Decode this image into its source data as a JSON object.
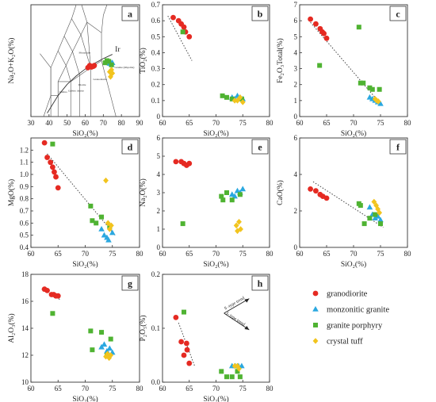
{
  "colors": {
    "granodiorite": "#e52a22",
    "monzonitic_granite": "#2aa8e0",
    "granite_porphyry": "#4fb332",
    "crystal_tuff": "#f2c41e",
    "axis": "#333333",
    "trend": "#444444"
  },
  "legend": {
    "items": [
      {
        "key": "granodiorite",
        "label": "granodiorite",
        "marker": "circle",
        "color": "#e52a22"
      },
      {
        "key": "monzonitic_granite",
        "label": "monzonitic granite",
        "marker": "triangle",
        "color": "#2aa8e0"
      },
      {
        "key": "granite_porphyry",
        "label": "granite porphyry",
        "marker": "square",
        "color": "#4fb332"
      },
      {
        "key": "crystal_tuff",
        "label": "crystal tuff",
        "marker": "diamond",
        "color": "#f2c41e"
      }
    ]
  },
  "chart_data": [
    {
      "panel": "a",
      "type": "scatter",
      "xlabel": "SiO₂(%)",
      "ylabel": "Na₂O+K₂O(%)",
      "xlim": [
        30,
        90
      ],
      "ylim": [
        0,
        16
      ],
      "xticks": [
        30,
        40,
        50,
        60,
        70,
        80,
        90
      ],
      "annotations": [
        "Ir",
        "Granite (Rhyolite)",
        "Granodiorite",
        "Diorite",
        "Gabbro diorite",
        "Gabbro",
        "Monzonite"
      ],
      "series": [
        {
          "key": "granodiorite",
          "points": [
            [
              61.5,
              7.0
            ],
            [
              62.5,
              7.3
            ],
            [
              63.5,
              7.1
            ],
            [
              64.5,
              7.2
            ],
            [
              65.0,
              7.3
            ]
          ]
        },
        {
          "key": "monzonitic_granite",
          "points": [
            [
              73.5,
              7.6
            ],
            [
              74.0,
              7.8
            ],
            [
              74.5,
              7.5
            ],
            [
              75.0,
              7.7
            ]
          ]
        },
        {
          "key": "granite_porphyry",
          "points": [
            [
              71.0,
              7.7
            ],
            [
              72.0,
              8.0
            ],
            [
              73.0,
              7.9
            ],
            [
              74.5,
              7.4
            ]
          ]
        },
        {
          "key": "crystal_tuff",
          "points": [
            [
              73.5,
              6.4
            ],
            [
              74.0,
              5.7
            ],
            [
              74.5,
              6.7
            ],
            [
              75.0,
              6.2
            ]
          ]
        }
      ]
    },
    {
      "panel": "b",
      "type": "scatter",
      "xlabel": "SiO₂(%)",
      "ylabel": "TiO₂(%)",
      "xlim": [
        60,
        80
      ],
      "ylim": [
        0,
        0.7
      ],
      "xticks": [
        60,
        65,
        70,
        75,
        80
      ],
      "yticks": [
        0.0,
        0.1,
        0.2,
        0.3,
        0.4,
        0.5,
        0.6,
        0.7
      ],
      "trend": [
        [
          61.0,
          0.63
        ],
        [
          65.5,
          0.35
        ]
      ],
      "series": [
        {
          "key": "granodiorite",
          "points": [
            [
              62.0,
              0.62
            ],
            [
              63.0,
              0.6
            ],
            [
              63.5,
              0.58
            ],
            [
              64.0,
              0.56
            ],
            [
              64.3,
              0.53
            ],
            [
              65.0,
              0.5
            ]
          ]
        },
        {
          "key": "monzonitic_granite",
          "points": [
            [
              73.0,
              0.12
            ],
            [
              73.5,
              0.11
            ],
            [
              74.0,
              0.13
            ],
            [
              74.5,
              0.12
            ],
            [
              75.0,
              0.11
            ]
          ]
        },
        {
          "key": "granite_porphyry",
          "points": [
            [
              63.8,
              0.53
            ],
            [
              71.2,
              0.13
            ],
            [
              72.0,
              0.12
            ],
            [
              73.0,
              0.11
            ],
            [
              74.8,
              0.11
            ]
          ]
        },
        {
          "key": "crystal_tuff",
          "points": [
            [
              73.5,
              0.1
            ],
            [
              74.0,
              0.1
            ],
            [
              74.5,
              0.12
            ],
            [
              75.0,
              0.09
            ]
          ]
        }
      ]
    },
    {
      "panel": "c",
      "type": "scatter",
      "xlabel": "SiO₂(%)",
      "ylabel": "Fe₂O₃Total(%)",
      "xlim": [
        60,
        80
      ],
      "ylim": [
        0,
        7
      ],
      "xticks": [
        60,
        65,
        70,
        75,
        80
      ],
      "yticks": [
        0,
        1,
        2,
        3,
        4,
        5,
        6,
        7
      ],
      "trend": [
        [
          62.0,
          5.9
        ],
        [
          75.0,
          0.8
        ]
      ],
      "series": [
        {
          "key": "granodiorite",
          "points": [
            [
              62.0,
              6.1
            ],
            [
              63.0,
              5.8
            ],
            [
              63.8,
              5.5
            ],
            [
              64.2,
              5.3
            ],
            [
              64.5,
              5.2
            ],
            [
              65.0,
              4.9
            ]
          ]
        },
        {
          "key": "monzonitic_granite",
          "points": [
            [
              73.0,
              1.2
            ],
            [
              73.5,
              1.1
            ],
            [
              74.0,
              1.0
            ],
            [
              74.5,
              0.9
            ],
            [
              75.0,
              0.8
            ]
          ]
        },
        {
          "key": "granite_porphyry",
          "points": [
            [
              63.7,
              3.2
            ],
            [
              71.0,
              5.6
            ],
            [
              71.3,
              2.1
            ],
            [
              71.8,
              2.1
            ],
            [
              73.0,
              1.8
            ],
            [
              73.5,
              1.7
            ],
            [
              74.8,
              1.7
            ]
          ]
        },
        {
          "key": "crystal_tuff",
          "points": [
            [
              74.0,
              1.1
            ],
            [
              74.3,
              1.0
            ],
            [
              74.6,
              0.95
            ]
          ]
        }
      ]
    },
    {
      "panel": "d",
      "type": "scatter",
      "xlabel": "SiO₂(%)",
      "ylabel": "MgO(%)",
      "xlim": [
        60,
        80
      ],
      "ylim": [
        0.4,
        1.3
      ],
      "xticks": [
        60,
        65,
        70,
        75,
        80
      ],
      "yticks": [
        0.4,
        0.5,
        0.6,
        0.7,
        0.8,
        0.9,
        1.0,
        1.1,
        1.2
      ],
      "yticklabels": [
        "0.4",
        "0.5",
        "0.6",
        "0.7",
        "0.8",
        "0.9",
        "1.0",
        "1.1",
        "1.2"
      ],
      "trend": [
        [
          63.0,
          1.17
        ],
        [
          75.5,
          0.5
        ]
      ],
      "series": [
        {
          "key": "granodiorite",
          "points": [
            [
              62.5,
              1.26
            ],
            [
              63.0,
              1.14
            ],
            [
              63.6,
              1.1
            ],
            [
              64.0,
              1.06
            ],
            [
              64.3,
              1.02
            ],
            [
              64.6,
              0.98
            ],
            [
              65.0,
              0.89
            ]
          ]
        },
        {
          "key": "monzonitic_granite",
          "points": [
            [
              73.0,
              0.55
            ],
            [
              73.5,
              0.5
            ],
            [
              74.0,
              0.48
            ],
            [
              74.3,
              0.46
            ],
            [
              75.0,
              0.52
            ]
          ]
        },
        {
          "key": "granite_porphyry",
          "points": [
            [
              64.0,
              1.25
            ],
            [
              71.0,
              0.74
            ],
            [
              71.3,
              0.62
            ],
            [
              72.0,
              0.6
            ],
            [
              73.0,
              0.65
            ],
            [
              74.5,
              0.57
            ]
          ]
        },
        {
          "key": "crystal_tuff",
          "points": [
            [
              73.8,
              0.95
            ],
            [
              74.2,
              0.6
            ],
            [
              74.5,
              0.55
            ],
            [
              74.8,
              0.58
            ]
          ]
        }
      ]
    },
    {
      "panel": "e",
      "type": "scatter",
      "xlabel": "SiO₂(%)",
      "ylabel": "Na₂O(%)",
      "xlim": [
        60,
        80
      ],
      "ylim": [
        0,
        6
      ],
      "xticks": [
        60,
        65,
        70,
        75,
        80
      ],
      "yticks": [
        0,
        1,
        2,
        3,
        4,
        5,
        6
      ],
      "series": [
        {
          "key": "granodiorite",
          "points": [
            [
              62.5,
              4.7
            ],
            [
              63.5,
              4.7
            ],
            [
              64.0,
              4.6
            ],
            [
              64.5,
              4.5
            ],
            [
              65.0,
              4.6
            ]
          ]
        },
        {
          "key": "monzonitic_granite",
          "points": [
            [
              73.0,
              2.9
            ],
            [
              73.5,
              2.8
            ],
            [
              74.0,
              3.1
            ],
            [
              74.5,
              3.0
            ],
            [
              75.0,
              3.2
            ]
          ]
        },
        {
          "key": "granite_porphyry",
          "points": [
            [
              63.8,
              1.3
            ],
            [
              71.0,
              2.8
            ],
            [
              71.3,
              2.6
            ],
            [
              72.0,
              3.0
            ],
            [
              73.0,
              2.6
            ],
            [
              74.5,
              2.9
            ]
          ]
        },
        {
          "key": "crystal_tuff",
          "points": [
            [
              73.8,
              1.2
            ],
            [
              74.0,
              0.9
            ],
            [
              74.3,
              1.4
            ],
            [
              74.6,
              1.0
            ]
          ]
        }
      ]
    },
    {
      "panel": "f",
      "type": "scatter",
      "xlabel": "SiO₂(%)",
      "ylabel": "CaO(%)",
      "xlim": [
        60,
        80
      ],
      "ylim": [
        0,
        6
      ],
      "xticks": [
        60,
        65,
        70,
        75,
        80
      ],
      "yticks": [
        0,
        2,
        4,
        6
      ],
      "trend": [
        [
          62.5,
          3.6
        ],
        [
          75.5,
          1.1
        ]
      ],
      "series": [
        {
          "key": "granodiorite",
          "points": [
            [
              62.0,
              3.2
            ],
            [
              63.0,
              3.1
            ],
            [
              63.8,
              2.9
            ],
            [
              64.3,
              2.8
            ],
            [
              65.0,
              2.7
            ]
          ]
        },
        {
          "key": "monzonitic_granite",
          "points": [
            [
              73.0,
              2.2
            ],
            [
              73.5,
              1.8
            ],
            [
              74.0,
              1.6
            ],
            [
              74.5,
              1.7
            ],
            [
              75.0,
              1.5
            ]
          ]
        },
        {
          "key": "granite_porphyry",
          "points": [
            [
              71.0,
              2.4
            ],
            [
              71.3,
              2.3
            ],
            [
              72.0,
              1.3
            ],
            [
              73.0,
              1.6
            ],
            [
              74.0,
              1.8
            ],
            [
              75.0,
              1.3
            ]
          ]
        },
        {
          "key": "crystal_tuff",
          "points": [
            [
              73.8,
              2.5
            ],
            [
              74.2,
              2.3
            ],
            [
              74.5,
              2.1
            ],
            [
              74.8,
              1.9
            ]
          ]
        }
      ]
    },
    {
      "panel": "g",
      "type": "scatter",
      "xlabel": "SiO₂(%)",
      "ylabel": "Al₂O₃(%)",
      "xlim": [
        60,
        80
      ],
      "ylim": [
        10,
        18
      ],
      "xticks": [
        60,
        65,
        70,
        75,
        80
      ],
      "yticks": [
        10,
        12,
        14,
        16,
        18
      ],
      "trend": [
        [
          62.0,
          16.9
        ],
        [
          65.5,
          16.1
        ]
      ],
      "series": [
        {
          "key": "granodiorite",
          "points": [
            [
              62.5,
              16.9
            ],
            [
              63.0,
              16.8
            ],
            [
              63.8,
              16.5
            ],
            [
              64.2,
              16.5
            ],
            [
              64.6,
              16.4
            ],
            [
              65.0,
              16.4
            ]
          ]
        },
        {
          "key": "monzonitic_granite",
          "points": [
            [
              73.0,
              12.6
            ],
            [
              73.5,
              12.8
            ],
            [
              74.0,
              12.3
            ],
            [
              74.5,
              12.5
            ],
            [
              75.0,
              12.2
            ]
          ]
        },
        {
          "key": "granite_porphyry",
          "points": [
            [
              64.0,
              15.1
            ],
            [
              71.0,
              13.8
            ],
            [
              71.3,
              12.4
            ],
            [
              73.0,
              13.7
            ],
            [
              74.0,
              12.0
            ],
            [
              74.7,
              13.2
            ]
          ]
        },
        {
          "key": "crystal_tuff",
          "points": [
            [
              73.8,
              11.9
            ],
            [
              74.1,
              12.1
            ],
            [
              74.4,
              11.8
            ],
            [
              74.7,
              12.0
            ]
          ]
        }
      ]
    },
    {
      "panel": "h",
      "type": "scatter",
      "xlabel": "SiO₂(%)",
      "ylabel": "P₂O₅(%)",
      "xlim": [
        60,
        80
      ],
      "ylim": [
        0,
        0.2
      ],
      "xticks": [
        60,
        65,
        70,
        75,
        80
      ],
      "yticks": [
        0.0,
        0.1,
        0.2
      ],
      "yticklabels": [
        "0.0",
        "0.1",
        "0.2"
      ],
      "trend": [
        [
          63.0,
          0.11
        ],
        [
          66.0,
          0.03
        ]
      ],
      "annotations": [
        "S -type trend",
        "I- type trend"
      ],
      "series": [
        {
          "key": "granodiorite",
          "points": [
            [
              62.5,
              0.12
            ],
            [
              63.5,
              0.075
            ],
            [
              64.0,
              0.05
            ],
            [
              64.5,
              0.072
            ],
            [
              64.6,
              0.06
            ],
            [
              65.0,
              0.035
            ]
          ]
        },
        {
          "key": "monzonitic_granite",
          "points": [
            [
              73.0,
              0.03
            ],
            [
              73.6,
              0.03
            ],
            [
              74.2,
              0.03
            ],
            [
              74.8,
              0.03
            ]
          ]
        },
        {
          "key": "granite_porphyry",
          "points": [
            [
              64.0,
              0.13
            ],
            [
              71.0,
              0.02
            ],
            [
              72.0,
              0.01
            ],
            [
              73.0,
              0.01
            ],
            [
              74.0,
              0.02
            ],
            [
              74.5,
              0.01
            ]
          ]
        },
        {
          "key": "crystal_tuff",
          "points": [
            [
              73.5,
              0.03
            ],
            [
              74.0,
              0.03
            ],
            [
              74.3,
              0.025
            ]
          ]
        }
      ]
    }
  ]
}
